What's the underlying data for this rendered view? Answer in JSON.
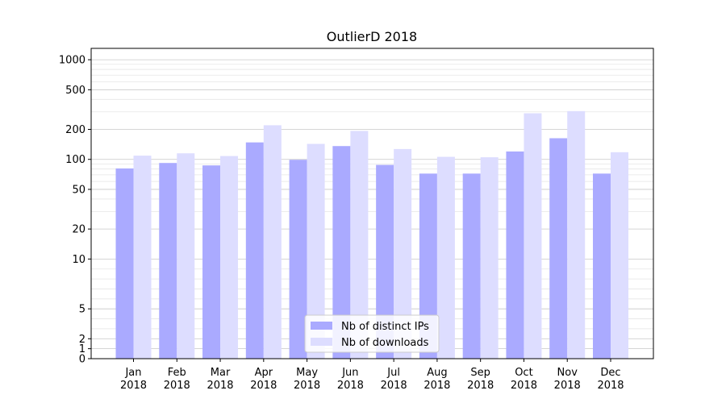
{
  "chart_data": {
    "type": "bar",
    "title": "OutlierD 2018",
    "xlabel": "",
    "ylabel": "",
    "yscale": "symlog",
    "ylim": [
      0,
      1300
    ],
    "yticks": [
      0,
      1,
      2,
      5,
      10,
      20,
      50,
      100,
      200,
      500,
      1000
    ],
    "grid": true,
    "legend_position": "bottom-center",
    "categories": [
      "Jan\n2018",
      "Feb\n2018",
      "Mar\n2018",
      "Apr\n2018",
      "May\n2018",
      "Jun\n2018",
      "Jul\n2018",
      "Aug\n2018",
      "Sep\n2018",
      "Oct\n2018",
      "Nov\n2018",
      "Dec\n2018"
    ],
    "series": [
      {
        "name": "Nb of distinct IPs",
        "color": "#aaaaff",
        "values": [
          81,
          92,
          87,
          148,
          99,
          136,
          88,
          72,
          72,
          120,
          163,
          72
        ]
      },
      {
        "name": "Nb of downloads",
        "color": "#ddddff",
        "values": [
          109,
          115,
          108,
          220,
          143,
          193,
          127,
          106,
          105,
          290,
          305,
          118
        ]
      }
    ]
  }
}
